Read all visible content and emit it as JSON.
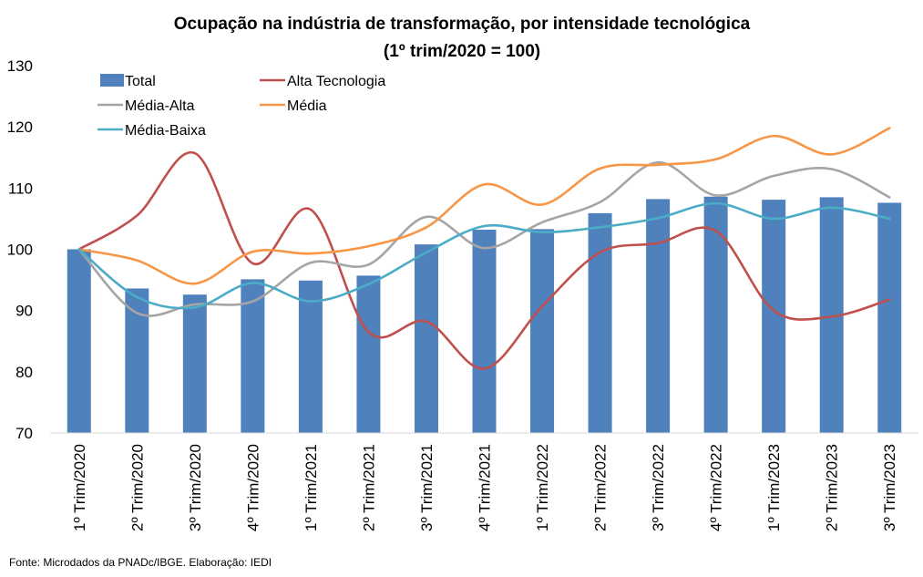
{
  "chart_data": {
    "type": "bar",
    "title": "Ocupação na indústria de transformação, por intensidade tecnológica",
    "subtitle": "(1º trim/2020 = 100)",
    "xlabel": "",
    "ylabel": "",
    "ylim": [
      70,
      130
    ],
    "yticks": [
      70,
      80,
      90,
      100,
      110,
      120,
      130
    ],
    "grid": false,
    "legend_position": "top-left",
    "categories": [
      "1º Trim/2020",
      "2º Trim/2020",
      "3º Trim/2020",
      "4º Trim/2020",
      "1º Trim/2021",
      "2º Trim/2021",
      "3º Trim/2021",
      "4º Trim/2021",
      "1º Trim/2022",
      "2º Trim/2022",
      "3º Trim/2022",
      "4º Trim/2022",
      "1º Trim/2023",
      "2º Trim/2023",
      "3º Trim/2023"
    ],
    "series": [
      {
        "name": "Total",
        "kind": "bar",
        "color": "#4F81BD",
        "values": [
          100,
          93.6,
          92.6,
          95.1,
          94.9,
          95.7,
          100.8,
          103.2,
          103.3,
          105.9,
          108.2,
          108.6,
          108.1,
          108.5,
          107.6
        ]
      },
      {
        "name": "Alta Tecnologia",
        "kind": "line",
        "color": "#C0504D",
        "values": [
          100,
          105.5,
          115.7,
          97.7,
          106.5,
          86.5,
          88.2,
          80.5,
          90.7,
          99.5,
          101.0,
          103.0,
          90.0,
          89.0,
          91.8
        ]
      },
      {
        "name": "Média-Alta",
        "kind": "line",
        "color": "#A5A5A5",
        "values": [
          100,
          89.6,
          91.0,
          91.5,
          97.8,
          97.5,
          105.3,
          100.2,
          104.4,
          107.7,
          114.2,
          108.8,
          112.0,
          113.1,
          108.5
        ]
      },
      {
        "name": "Média",
        "kind": "line",
        "color": "#F79646",
        "values": [
          100,
          98.2,
          94.4,
          99.6,
          99.3,
          100.5,
          103.6,
          110.6,
          107.3,
          113.2,
          113.8,
          114.7,
          118.5,
          115.5,
          119.8
        ]
      },
      {
        "name": "Média-Baixa",
        "kind": "line",
        "color": "#4BACC6",
        "values": [
          100,
          92.2,
          90.5,
          94.5,
          91.5,
          94.3,
          99.5,
          103.8,
          102.8,
          103.6,
          105.1,
          107.5,
          105.0,
          106.8,
          105.0
        ]
      }
    ],
    "source_note": "Fonte: Microdados da PNADc/IBGE. Elaboração: IEDI"
  }
}
